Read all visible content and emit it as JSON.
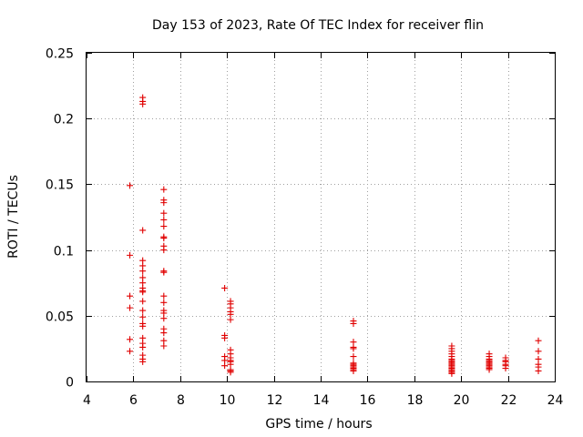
{
  "chart_data": {
    "type": "scatter",
    "title": "Day 153 of 2023, Rate Of TEC Index for receiver flin",
    "xlabel": "GPS time / hours",
    "ylabel": "ROTI / TECUs",
    "xlim": [
      4,
      24
    ],
    "ylim": [
      0,
      0.25
    ],
    "xticks": [
      4,
      6,
      8,
      10,
      12,
      14,
      16,
      18,
      20,
      22,
      24
    ],
    "xtick_labels": [
      "4",
      "6",
      "8",
      "10",
      "12",
      "14",
      "16",
      "18",
      "20",
      "22",
      "24"
    ],
    "yticks": [
      0,
      0.05,
      0.1,
      0.15,
      0.2,
      0.25
    ],
    "ytick_labels": [
      "0",
      "0.05",
      "0.1",
      "0.15",
      "0.2",
      "0.25"
    ],
    "grid": true,
    "marker": "+",
    "marker_color": "#e00000",
    "series": [
      {
        "name": "ROTI",
        "points": [
          [
            5.85,
            0.149
          ],
          [
            5.85,
            0.096
          ],
          [
            5.85,
            0.065
          ],
          [
            5.85,
            0.056
          ],
          [
            5.85,
            0.032
          ],
          [
            5.85,
            0.023
          ],
          [
            6.4,
            0.216
          ],
          [
            6.4,
            0.213
          ],
          [
            6.4,
            0.211
          ],
          [
            6.4,
            0.115
          ],
          [
            6.4,
            0.092
          ],
          [
            6.4,
            0.088
          ],
          [
            6.4,
            0.084
          ],
          [
            6.4,
            0.079
          ],
          [
            6.4,
            0.075
          ],
          [
            6.4,
            0.071
          ],
          [
            6.4,
            0.069
          ],
          [
            6.4,
            0.068
          ],
          [
            6.4,
            0.061
          ],
          [
            6.4,
            0.054
          ],
          [
            6.4,
            0.049
          ],
          [
            6.4,
            0.044
          ],
          [
            6.4,
            0.042
          ],
          [
            6.4,
            0.033
          ],
          [
            6.4,
            0.029
          ],
          [
            6.4,
            0.026
          ],
          [
            6.4,
            0.02
          ],
          [
            6.4,
            0.017
          ],
          [
            6.4,
            0.015
          ],
          [
            7.3,
            0.146
          ],
          [
            7.3,
            0.138
          ],
          [
            7.3,
            0.136
          ],
          [
            7.3,
            0.128
          ],
          [
            7.3,
            0.123
          ],
          [
            7.3,
            0.118
          ],
          [
            7.3,
            0.11
          ],
          [
            7.3,
            0.109
          ],
          [
            7.3,
            0.103
          ],
          [
            7.3,
            0.1
          ],
          [
            7.3,
            0.084
          ],
          [
            7.3,
            0.083
          ],
          [
            7.3,
            0.065
          ],
          [
            7.3,
            0.06
          ],
          [
            7.3,
            0.054
          ],
          [
            7.3,
            0.052
          ],
          [
            7.3,
            0.048
          ],
          [
            7.3,
            0.04
          ],
          [
            7.3,
            0.037
          ],
          [
            7.3,
            0.031
          ],
          [
            7.3,
            0.027
          ],
          [
            9.9,
            0.071
          ],
          [
            9.9,
            0.035
          ],
          [
            9.9,
            0.033
          ],
          [
            9.9,
            0.019
          ],
          [
            9.9,
            0.016
          ],
          [
            9.9,
            0.012
          ],
          [
            10.15,
            0.061
          ],
          [
            10.15,
            0.059
          ],
          [
            10.15,
            0.056
          ],
          [
            10.15,
            0.053
          ],
          [
            10.15,
            0.051
          ],
          [
            10.15,
            0.047
          ],
          [
            10.15,
            0.024
          ],
          [
            10.15,
            0.021
          ],
          [
            10.15,
            0.018
          ],
          [
            10.15,
            0.016
          ],
          [
            10.15,
            0.015
          ],
          [
            10.15,
            0.013
          ],
          [
            10.15,
            0.009
          ],
          [
            10.15,
            0.008
          ],
          [
            10.15,
            0.007
          ],
          [
            15.4,
            0.046
          ],
          [
            15.4,
            0.044
          ],
          [
            15.4,
            0.03
          ],
          [
            15.4,
            0.026
          ],
          [
            15.4,
            0.025
          ],
          [
            15.4,
            0.019
          ],
          [
            15.4,
            0.014
          ],
          [
            15.4,
            0.013
          ],
          [
            15.4,
            0.012
          ],
          [
            15.4,
            0.011
          ],
          [
            15.4,
            0.01
          ],
          [
            15.4,
            0.009
          ],
          [
            15.4,
            0.008
          ],
          [
            19.6,
            0.027
          ],
          [
            19.6,
            0.025
          ],
          [
            19.6,
            0.023
          ],
          [
            19.6,
            0.021
          ],
          [
            19.6,
            0.019
          ],
          [
            19.6,
            0.017
          ],
          [
            19.6,
            0.016
          ],
          [
            19.6,
            0.015
          ],
          [
            19.6,
            0.014
          ],
          [
            19.6,
            0.013
          ],
          [
            19.6,
            0.012
          ],
          [
            19.6,
            0.011
          ],
          [
            19.6,
            0.01
          ],
          [
            19.6,
            0.009
          ],
          [
            19.6,
            0.008
          ],
          [
            19.6,
            0.007
          ],
          [
            19.6,
            0.006
          ],
          [
            21.2,
            0.021
          ],
          [
            21.2,
            0.019
          ],
          [
            21.2,
            0.017
          ],
          [
            21.2,
            0.016
          ],
          [
            21.2,
            0.015
          ],
          [
            21.2,
            0.014
          ],
          [
            21.2,
            0.013
          ],
          [
            21.2,
            0.012
          ],
          [
            21.2,
            0.011
          ],
          [
            21.2,
            0.01
          ],
          [
            21.2,
            0.009
          ],
          [
            21.9,
            0.018
          ],
          [
            21.9,
            0.016
          ],
          [
            21.9,
            0.015
          ],
          [
            21.9,
            0.013
          ],
          [
            21.9,
            0.012
          ],
          [
            21.9,
            0.01
          ],
          [
            23.3,
            0.031
          ],
          [
            23.3,
            0.023
          ],
          [
            23.3,
            0.017
          ],
          [
            23.3,
            0.013
          ],
          [
            23.3,
            0.011
          ],
          [
            23.3,
            0.008
          ]
        ]
      }
    ]
  }
}
